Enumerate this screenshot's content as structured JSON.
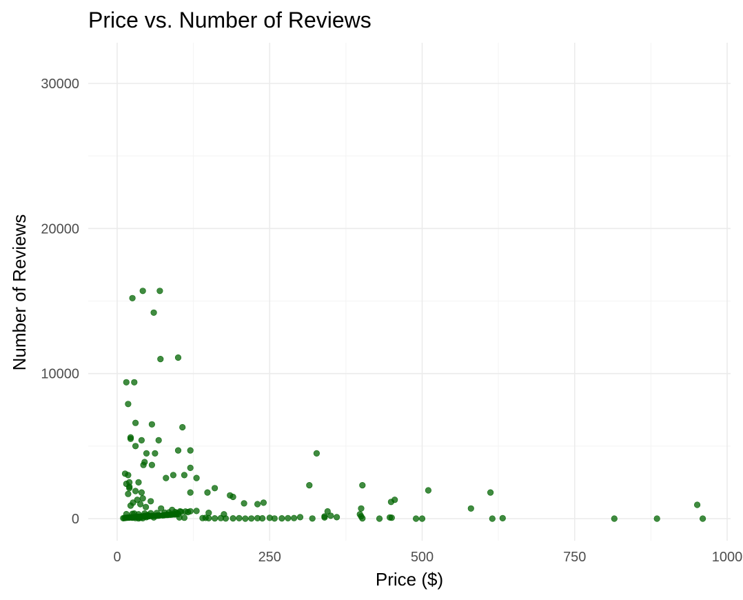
{
  "chart_data": {
    "type": "scatter",
    "title": "Price vs. Number of Reviews",
    "xlabel": "Price ($)",
    "ylabel": "Number of Reviews",
    "xlim": [
      -20,
      1000
    ],
    "ylim": [
      -1500,
      30000
    ],
    "x_ticks": [
      0,
      250,
      500,
      750,
      1000
    ],
    "x_tick_labels": [
      "0",
      "250",
      "500",
      "750",
      "1000"
    ],
    "y_ticks": [
      0,
      10000,
      20000,
      30000
    ],
    "y_tick_labels": [
      "0",
      "10000",
      "20000",
      "30000"
    ],
    "grid": true,
    "legend": "none",
    "point_color": "#006400",
    "point_opacity": 0.75,
    "series": [
      {
        "x": [
          42,
          70,
          25,
          60,
          100,
          71,
          15,
          28,
          18,
          22,
          30,
          57,
          107,
          22,
          40,
          68,
          48,
          100,
          120,
          30,
          62,
          13,
          45,
          120,
          18,
          92,
          43,
          57,
          110,
          80,
          130,
          120,
          20,
          20,
          35,
          15,
          20,
          30,
          18,
          40,
          42,
          55,
          33,
          26,
          38,
          22,
          47,
          72,
          90,
          103,
          116,
          98,
          28,
          35,
          50,
          45,
          40,
          48,
          60,
          25,
          30,
          35,
          42,
          38,
          20,
          22,
          33,
          37,
          43,
          52,
          58,
          66,
          75,
          82,
          88,
          95,
          15,
          25,
          45,
          55,
          65,
          78,
          85,
          95,
          105,
          112,
          120,
          130,
          10,
          12,
          14,
          16,
          18,
          24,
          26,
          28,
          32,
          34,
          36,
          44,
          46,
          50,
          53,
          56,
          62,
          65,
          68,
          70,
          74,
          77,
          80,
          84,
          87,
          90,
          93,
          97,
          100,
          102,
          110,
          140,
          145,
          150,
          160,
          170,
          178,
          190,
          200,
          210,
          220,
          230,
          238,
          250,
          258,
          270,
          280,
          290,
          300,
          320,
          340,
          350,
          360,
          400,
          402,
          430,
          450,
          490,
          500,
          615,
          632,
          815,
          885,
          960,
          327,
          315,
          402,
          400,
          455,
          449,
          510,
          580,
          612,
          951,
          148,
          160,
          185,
          190,
          208,
          230,
          240,
          150,
          175,
          340,
          345,
          398,
          447
        ],
        "y": [
          15700,
          15700,
          15200,
          14200,
          11100,
          11000,
          9400,
          9400,
          7900,
          5500,
          6600,
          6500,
          6300,
          5600,
          5400,
          5400,
          4500,
          4700,
          4700,
          5000,
          4500,
          3100,
          3900,
          3500,
          3000,
          3000,
          3700,
          3700,
          3000,
          2800,
          2800,
          1800,
          2500,
          2200,
          2500,
          2400,
          2100,
          1900,
          1700,
          1800,
          1400,
          1200,
          1300,
          1100,
          1000,
          900,
          800,
          700,
          600,
          500,
          450,
          400,
          350,
          300,
          250,
          200,
          150,
          100,
          80,
          60,
          40,
          20,
          30,
          50,
          70,
          90,
          110,
          130,
          150,
          170,
          190,
          210,
          230,
          250,
          270,
          290,
          310,
          330,
          350,
          370,
          390,
          410,
          430,
          450,
          470,
          490,
          510,
          530,
          30,
          40,
          50,
          60,
          70,
          80,
          90,
          100,
          110,
          120,
          130,
          140,
          150,
          160,
          170,
          180,
          190,
          200,
          210,
          220,
          230,
          240,
          250,
          260,
          270,
          280,
          290,
          300,
          310,
          80,
          60,
          40,
          50,
          30,
          20,
          40,
          10,
          20,
          30,
          0,
          10,
          30,
          20,
          50,
          10,
          20,
          30,
          40,
          100,
          10,
          80,
          200,
          100,
          150,
          20,
          0,
          60,
          0,
          0,
          0,
          30,
          0,
          0,
          0,
          4500,
          2300,
          2300,
          700,
          1300,
          1150,
          1950,
          700,
          1800,
          950,
          1800,
          2100,
          1600,
          1500,
          1050,
          1000,
          1100,
          400,
          300,
          150,
          500,
          300,
          80
        ]
      }
    ]
  }
}
